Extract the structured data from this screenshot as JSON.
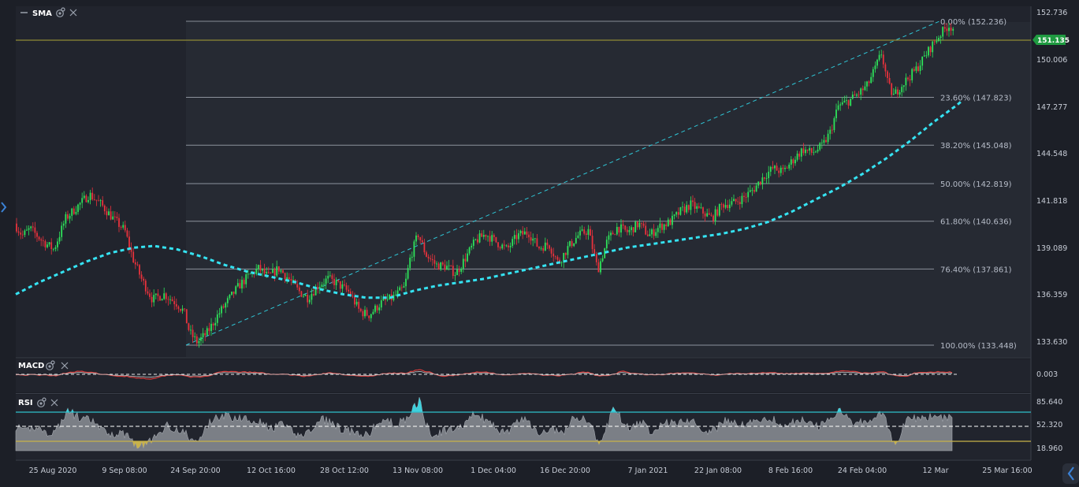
{
  "chart_data": {
    "type": "candlestick",
    "price_panel": {
      "indicator_label": "SMA",
      "y_ticks": [
        "152.736",
        "150.006",
        "147.277",
        "144.548",
        "141.818",
        "139.089",
        "136.359",
        "133.630"
      ],
      "ylim": [
        133.63,
        152.736
      ],
      "current_price": 151.135,
      "current_price_label": "151.135",
      "fib_levels": [
        {
          "label": "0.00% (152.236)",
          "value": 152.236
        },
        {
          "label": "23.60% (147.823)",
          "value": 147.823
        },
        {
          "label": "38.20% (145.048)",
          "value": 145.048
        },
        {
          "label": "50.00% (142.819)",
          "value": 142.819
        },
        {
          "label": "61.80% (140.636)",
          "value": 140.636
        },
        {
          "label": "76.40% (137.861)",
          "value": 137.861
        },
        {
          "label": "100.00% (133.448)",
          "value": 133.448
        }
      ],
      "price_path": [
        [
          0,
          140.5
        ],
        [
          10,
          139.8
        ],
        [
          20,
          140.2
        ],
        [
          35,
          139.5
        ],
        [
          50,
          139.0
        ],
        [
          65,
          140.8
        ],
        [
          80,
          141.5
        ],
        [
          95,
          142.2
        ],
        [
          110,
          141.6
        ],
        [
          125,
          140.8
        ],
        [
          140,
          140.1
        ],
        [
          150,
          138.5
        ],
        [
          162,
          137.2
        ],
        [
          175,
          136.1
        ],
        [
          190,
          136.4
        ],
        [
          205,
          135.9
        ],
        [
          215,
          135.4
        ],
        [
          222,
          134.2
        ],
        [
          232,
          133.6
        ],
        [
          245,
          134.2
        ],
        [
          258,
          135.2
        ],
        [
          272,
          136.1
        ],
        [
          285,
          136.9
        ],
        [
          298,
          137.5
        ],
        [
          310,
          137.9
        ],
        [
          322,
          137.4
        ],
        [
          335,
          137.9
        ],
        [
          348,
          137.3
        ],
        [
          360,
          136.6
        ],
        [
          372,
          136.2
        ],
        [
          385,
          136.9
        ],
        [
          398,
          137.3
        ],
        [
          410,
          137.0
        ],
        [
          425,
          136.5
        ],
        [
          438,
          135.4
        ],
        [
          450,
          135.2
        ],
        [
          465,
          135.9
        ],
        [
          480,
          136.2
        ],
        [
          495,
          136.8
        ],
        [
          502,
          138.5
        ],
        [
          512,
          139.9
        ],
        [
          522,
          138.7
        ],
        [
          535,
          138.1
        ],
        [
          548,
          138.0
        ],
        [
          560,
          137.6
        ],
        [
          572,
          138.5
        ],
        [
          585,
          139.5
        ],
        [
          598,
          139.9
        ],
        [
          612,
          139.4
        ],
        [
          625,
          139.0
        ],
        [
          638,
          139.8
        ],
        [
          652,
          140.0
        ],
        [
          665,
          139.1
        ],
        [
          678,
          139.3
        ],
        [
          690,
          138.2
        ],
        [
          702,
          139.1
        ],
        [
          715,
          139.8
        ],
        [
          728,
          140.1
        ],
        [
          740,
          137.8
        ],
        [
          752,
          139.5
        ],
        [
          765,
          140.3
        ],
        [
          778,
          140.0
        ],
        [
          792,
          140.5
        ],
        [
          805,
          139.8
        ],
        [
          818,
          140.3
        ],
        [
          832,
          140.6
        ],
        [
          845,
          141.2
        ],
        [
          858,
          141.6
        ],
        [
          872,
          141.2
        ],
        [
          885,
          140.8
        ],
        [
          898,
          141.6
        ],
        [
          912,
          141.7
        ],
        [
          925,
          142.0
        ],
        [
          938,
          142.5
        ],
        [
          950,
          143.2
        ],
        [
          962,
          143.7
        ],
        [
          975,
          143.5
        ],
        [
          988,
          144.2
        ],
        [
          1000,
          144.8
        ],
        [
          1012,
          144.6
        ],
        [
          1025,
          145.0
        ],
        [
          1035,
          145.8
        ],
        [
          1045,
          147.3
        ],
        [
          1058,
          147.6
        ],
        [
          1070,
          148.0
        ],
        [
          1082,
          148.5
        ],
        [
          1092,
          149.5
        ],
        [
          1100,
          150.4
        ],
        [
          1108,
          148.6
        ],
        [
          1115,
          147.9
        ],
        [
          1125,
          148.5
        ],
        [
          1135,
          149.0
        ],
        [
          1145,
          149.5
        ],
        [
          1155,
          150.2
        ],
        [
          1165,
          150.9
        ],
        [
          1175,
          151.5
        ],
        [
          1185,
          152.0
        ],
        [
          1192,
          151.8
        ],
        [
          1200,
          151.3
        ],
        [
          1208,
          150.8
        ]
      ],
      "sma_path": [
        [
          0,
          136.4
        ],
        [
          30,
          137.1
        ],
        [
          60,
          137.7
        ],
        [
          90,
          138.3
        ],
        [
          120,
          138.8
        ],
        [
          150,
          139.1
        ],
        [
          175,
          139.2
        ],
        [
          205,
          139.0
        ],
        [
          235,
          138.6
        ],
        [
          265,
          138.1
        ],
        [
          295,
          137.7
        ],
        [
          325,
          137.4
        ],
        [
          355,
          137.1
        ],
        [
          385,
          136.7
        ],
        [
          415,
          136.4
        ],
        [
          445,
          136.2
        ],
        [
          475,
          136.2
        ],
        [
          505,
          136.6
        ],
        [
          535,
          136.9
        ],
        [
          565,
          137.1
        ],
        [
          595,
          137.3
        ],
        [
          625,
          137.6
        ],
        [
          655,
          137.9
        ],
        [
          685,
          138.2
        ],
        [
          715,
          138.5
        ],
        [
          745,
          138.8
        ],
        [
          775,
          139.1
        ],
        [
          805,
          139.3
        ],
        [
          835,
          139.5
        ],
        [
          865,
          139.7
        ],
        [
          895,
          139.9
        ],
        [
          925,
          140.2
        ],
        [
          955,
          140.6
        ],
        [
          985,
          141.2
        ],
        [
          1015,
          141.9
        ],
        [
          1045,
          142.6
        ],
        [
          1075,
          143.4
        ],
        [
          1105,
          144.3
        ],
        [
          1135,
          145.3
        ],
        [
          1165,
          146.4
        ],
        [
          1195,
          147.4
        ],
        [
          1200,
          147.6
        ]
      ]
    },
    "macd_panel": {
      "label": "MACD",
      "value_label": "0.003"
    },
    "rsi_panel": {
      "label": "RSI",
      "y_ticks": [
        "85.640",
        "52.320",
        "18.960"
      ],
      "ylim": [
        18.96,
        85.64
      ]
    },
    "x_tick_labels": [
      "25 Aug 2020",
      "9 Sep 08:00",
      "24 Sep 20:00",
      "12 Oct 16:00",
      "28 Oct 12:00",
      "13 Nov 08:00",
      "1 Dec 04:00",
      "16 Dec 20:00",
      "7 Jan 2021",
      "22 Jan 08:00",
      "8 Feb 16:00",
      "24 Feb 04:00",
      "12 Mar",
      "25 Mar 16:00"
    ]
  },
  "colors": {
    "background": "#1c1f27",
    "plot_bg": "#252932",
    "bull": "#2ee35a",
    "bear": "#e8323c",
    "sma": "#35e3f2",
    "trendline": "#2fc6d6",
    "fib_line": "#8c929c",
    "current_line": "#8f8a35",
    "price_tag": "#1f9a41",
    "macd_line": "#d63a3a",
    "rsi_area": "#8b8f97",
    "rsi_upper": "#2fc0cc",
    "rsi_lower": "#c8b24a"
  },
  "icons": [
    "minus-icon",
    "gear-icon",
    "close-icon",
    "chevron-left-icon",
    "chevron-right-icon"
  ]
}
